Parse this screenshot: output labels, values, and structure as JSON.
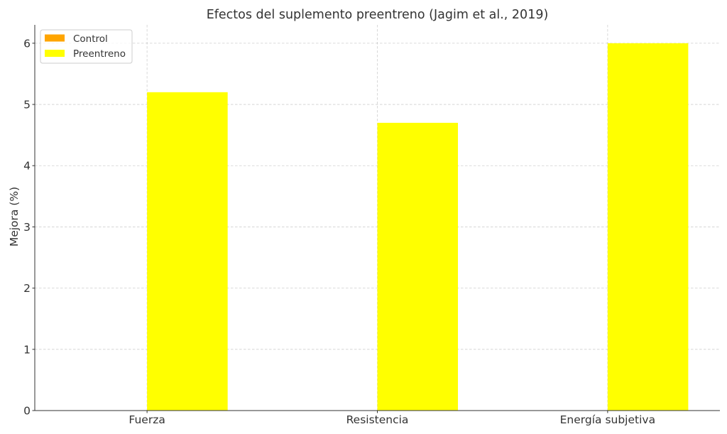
{
  "chart_data": {
    "type": "bar",
    "title": "Efectos del suplemento preentreno (Jagim et al., 2019)",
    "ylabel": "Mejora (%)",
    "categories": [
      "Fuerza",
      "Resistencia",
      "Energía subjetiva"
    ],
    "series": [
      {
        "name": "Control",
        "values": [
          0,
          0,
          0
        ],
        "color": "#FFA500"
      },
      {
        "name": "Preentreno",
        "values": [
          5.2,
          4.7,
          6.0
        ],
        "color": "#FFFF00"
      }
    ],
    "ylim": [
      0,
      6.3
    ],
    "yticks": [
      0,
      1,
      2,
      3,
      4,
      5,
      6
    ],
    "grid": true,
    "legend": "top-left"
  }
}
